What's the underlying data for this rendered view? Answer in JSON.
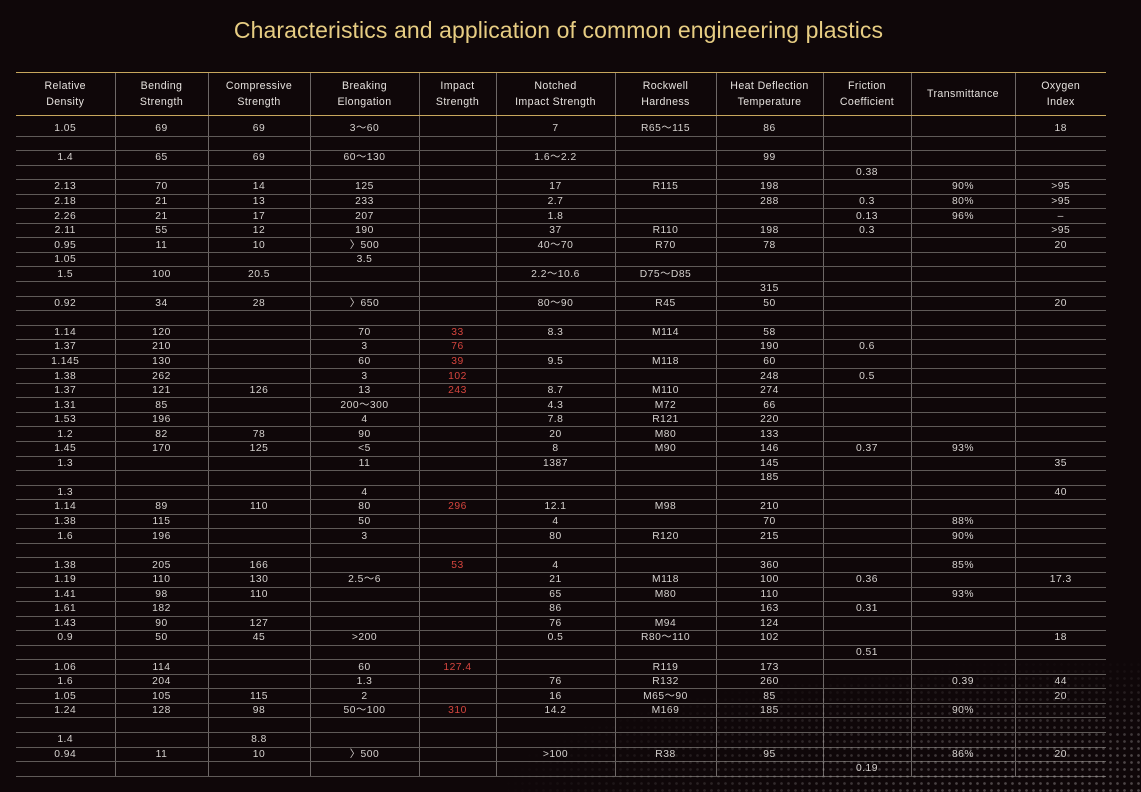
{
  "title": "Characteristics and application of common engineering plastics",
  "headers": [
    "Relative\nDensity",
    "Bending\nStrength",
    "Compressive\nStrength",
    "Breaking\nElongation",
    "Impact\nStrength",
    "Notched\nImpact Strength",
    "Rockwell\nHardness",
    "Heat Deflection\nTemperature",
    "Friction\nCoefficient",
    "Transmittance",
    "Oxygen\nIndex"
  ],
  "rows": [
    [
      "1.05",
      "69",
      "69",
      "3～60",
      "",
      "7",
      "R65～115",
      "86",
      "",
      "",
      "18"
    ],
    [
      "",
      "",
      "",
      "",
      "",
      "",
      "",
      "",
      "",
      "",
      ""
    ],
    [
      "1.4",
      "65",
      "69",
      "60～130",
      "",
      "1.6～2.2",
      "",
      "99",
      "",
      "",
      ""
    ],
    [
      "",
      "",
      "",
      "",
      "",
      "",
      "",
      "",
      "0.38",
      "",
      ""
    ],
    [
      "2.13",
      "70",
      "14",
      "125",
      "",
      "17",
      "R115",
      "198",
      "",
      "90%",
      ">95"
    ],
    [
      "2.18",
      "21",
      "13",
      "233",
      "",
      "2.7",
      "",
      "288",
      "0.3",
      "80%",
      ">95"
    ],
    [
      "2.26",
      "21",
      "17",
      "207",
      "",
      "1.8",
      "",
      "",
      "0.13",
      "96%",
      "–"
    ],
    [
      "2.11",
      "55",
      "12",
      "190",
      "",
      "37",
      "R110",
      "198",
      "0.3",
      "",
      ">95"
    ],
    [
      "0.95",
      "11",
      "10",
      "〉500",
      "",
      "40～70",
      "R70",
      "78",
      "",
      "",
      "20"
    ],
    [
      "1.05",
      "",
      "",
      "3.5",
      "",
      "",
      "",
      "",
      "",
      "",
      ""
    ],
    [
      "1.5",
      "100",
      "20.5",
      "",
      "",
      "2.2～10.6",
      "D75～D85",
      "",
      "",
      "",
      ""
    ],
    [
      "",
      "",
      "",
      "",
      "",
      "",
      "",
      "315",
      "",
      "",
      ""
    ],
    [
      "0.92",
      "34",
      "28",
      "〉650",
      "",
      "80～90",
      "R45",
      "50",
      "",
      "",
      "20"
    ],
    [
      "",
      "",
      "",
      "",
      "",
      "",
      "",
      "",
      "",
      "",
      ""
    ],
    [
      "1.14",
      "120",
      "",
      "70",
      "33",
      "8.3",
      "M114",
      "58",
      "",
      "",
      ""
    ],
    [
      "1.37",
      "210",
      "",
      "3",
      "76",
      "",
      "",
      "190",
      "0.6",
      "",
      ""
    ],
    [
      "1.145",
      "130",
      "",
      "60",
      "39",
      "9.5",
      "M118",
      "60",
      "",
      "",
      ""
    ],
    [
      "1.38",
      "262",
      "",
      "3",
      "102",
      "",
      "",
      "248",
      "0.5",
      "",
      ""
    ],
    [
      "1.37",
      "121",
      "126",
      "13",
      "243",
      "8.7",
      "M110",
      "274",
      "",
      "",
      ""
    ],
    [
      "1.31",
      "85",
      "",
      "200～300",
      "",
      "4.3",
      "M72",
      "66",
      "",
      "",
      ""
    ],
    [
      "1.53",
      "196",
      "",
      "4",
      "",
      "7.8",
      "R121",
      "220",
      "",
      "",
      ""
    ],
    [
      "1.2",
      "82",
      "78",
      "90",
      "",
      "20",
      "M80",
      "133",
      "",
      "",
      ""
    ],
    [
      "1.45",
      "170",
      "125",
      "<5",
      "",
      "8",
      "M90",
      "146",
      "0.37",
      "93%",
      ""
    ],
    [
      "1.3",
      "",
      "",
      "11",
      "",
      "1387",
      "",
      "145",
      "",
      "",
      "35"
    ],
    [
      "",
      "",
      "",
      "",
      "",
      "",
      "",
      "185",
      "",
      "",
      ""
    ],
    [
      "1.3",
      "",
      "",
      "4",
      "",
      "",
      "",
      "",
      "",
      "",
      "40"
    ],
    [
      "1.14",
      "89",
      "110",
      "80",
      "296",
      "12.1",
      "M98",
      "210",
      "",
      "",
      ""
    ],
    [
      "1.38",
      "115",
      "",
      "50",
      "",
      "4",
      "",
      "70",
      "",
      "88%",
      ""
    ],
    [
      "1.6",
      "196",
      "",
      "3",
      "",
      "80",
      "R120",
      "215",
      "",
      "90%",
      ""
    ],
    [
      "",
      "",
      "",
      "",
      "",
      "",
      "",
      "",
      "",
      "",
      ""
    ],
    [
      "1.38",
      "205",
      "166",
      "",
      "53",
      "4",
      "",
      "360",
      "",
      "85%",
      ""
    ],
    [
      "1.19",
      "110",
      "130",
      "2.5～6",
      "",
      "21",
      "M118",
      "100",
      "0.36",
      "",
      "17.3"
    ],
    [
      "1.41",
      "98",
      "110",
      "",
      "",
      "65",
      "M80",
      "110",
      "",
      "93%",
      ""
    ],
    [
      "1.61",
      "182",
      "",
      "",
      "",
      "86",
      "",
      "163",
      "0.31",
      "",
      ""
    ],
    [
      "1.43",
      "90",
      "127",
      "",
      "",
      "76",
      "M94",
      "124",
      "",
      "",
      ""
    ],
    [
      "0.9",
      "50",
      "45",
      ">200",
      "",
      "0.5",
      "R80～110",
      "102",
      "",
      "",
      "18"
    ],
    [
      "",
      "",
      "",
      "",
      "",
      "",
      "",
      "",
      "0.51",
      "",
      ""
    ],
    [
      "1.06",
      "114",
      "",
      "60",
      "127.4",
      "",
      "R119",
      "173",
      "",
      "",
      ""
    ],
    [
      "1.6",
      "204",
      "",
      "1.3",
      "",
      "76",
      "R132",
      "260",
      "",
      "0.39",
      "44"
    ],
    [
      "1.05",
      "105",
      "115",
      "2",
      "",
      "16",
      "M65～90",
      "85",
      "",
      "",
      "20"
    ],
    [
      "1.24",
      "128",
      "98",
      "50～100",
      "310",
      "14.2",
      "M169",
      "185",
      "",
      "90%",
      ""
    ],
    [
      "",
      "",
      "",
      "",
      "",
      "",
      "",
      "",
      "",
      "",
      ""
    ],
    [
      "1.4",
      "",
      "8.8",
      "",
      "",
      "",
      "",
      "",
      "",
      "",
      ""
    ],
    [
      "0.94",
      "11",
      "10",
      "〉500",
      "",
      ">100",
      "R38",
      "95",
      "",
      "86%",
      "20"
    ],
    [
      "",
      "",
      "",
      "",
      "",
      "",
      "",
      "",
      "0.19",
      "",
      ""
    ]
  ],
  "colors": {
    "title": "#e7cd83",
    "rule": "#c7a75d",
    "highlight": "#d6453e",
    "background": "#0f0709"
  }
}
